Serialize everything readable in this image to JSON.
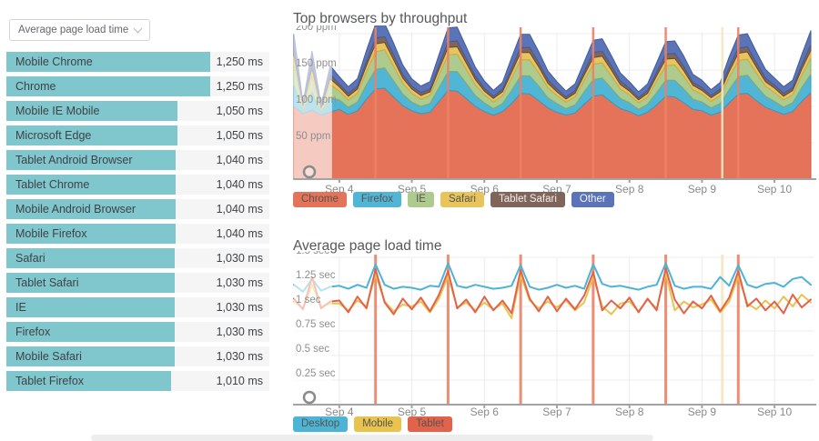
{
  "controls": {
    "metric_dropdown_value": "Average page load time"
  },
  "colors": {
    "bar_teal": "#80c6cd",
    "row_bg": "#f5f5f5",
    "annotation": "#ec8266",
    "annotation_light": "#f5e7c1",
    "axis": "#a3a3a3",
    "grid": "#ececec",
    "tick_text": "#8f8f8f",
    "title_text": "#56585a"
  },
  "chart_data": [
    {
      "type": "area",
      "stacked": true,
      "title": "Top browsers by throughput",
      "unit": "ppm",
      "ylim": [
        0,
        210
      ],
      "x_start": 3.375,
      "x_step": 0.125,
      "x_end": 10.55,
      "x_ticks": {
        "days": [
          4,
          5,
          6,
          7,
          8,
          9,
          10
        ],
        "labels": [
          "Sep 4",
          "Sep 5",
          "Sep 6",
          "Sep 7",
          "Sep 8",
          "Sep 9",
          "Sep 10"
        ]
      },
      "y_ticks": [
        {
          "value": 200,
          "label": "200 ppm"
        },
        {
          "value": 150,
          "label": "150 ppm"
        },
        {
          "value": 100,
          "label": "100 ppm"
        },
        {
          "value": 50,
          "label": "50 ppm"
        }
      ],
      "annotations": [
        {
          "day": 4.5,
          "color": "#ec8266"
        },
        {
          "day": 5.5,
          "color": "#ec8266"
        },
        {
          "day": 6.5,
          "color": "#ec8266"
        },
        {
          "day": 7.5,
          "color": "#ec8266"
        },
        {
          "day": 8.5,
          "color": "#ec8266"
        },
        {
          "day": 9.28,
          "color": "#f5e7c1"
        },
        {
          "day": 9.5,
          "color": "#ec8266"
        }
      ],
      "brush": {
        "end_day": 3.9
      },
      "legend_position": "bottom",
      "grid": true,
      "series": [
        {
          "name": "Chrome",
          "color": "#e4735a",
          "edge": "#d4563e",
          "values": [
            100,
            90,
            95,
            88,
            92,
            96,
            89,
            94,
            110,
            124,
            125,
            113,
            101,
            94,
            90,
            92,
            107,
            122,
            121,
            111,
            100,
            93,
            88,
            93,
            104,
            118,
            117,
            108,
            98,
            92,
            88,
            91,
            103,
            114,
            116,
            106,
            97,
            93,
            87,
            92,
            102,
            114,
            113,
            105,
            96,
            94,
            88,
            92,
            105,
            117,
            118,
            108,
            99,
            94,
            89,
            93,
            107,
            119
          ]
        },
        {
          "name": "Firefox",
          "color": "#51b5d6",
          "edge": "#2e9ec4",
          "values": [
            30,
            5,
            25,
            4,
            20,
            13,
            10,
            12,
            20,
            27,
            28,
            22,
            16,
            12,
            10,
            12,
            19,
            26,
            27,
            21,
            15,
            12,
            9,
            11,
            18,
            24,
            25,
            20,
            14,
            12,
            9,
            11,
            17,
            23,
            23,
            19,
            14,
            12,
            9,
            11,
            17,
            22,
            23,
            19,
            14,
            12,
            10,
            12,
            18,
            24,
            25,
            20,
            15,
            13,
            10,
            12,
            19,
            25
          ]
        },
        {
          "name": "IE",
          "color": "#adca8f",
          "edge": "#88ad67",
          "values": [
            28,
            4,
            22,
            4,
            18,
            12,
            10,
            12,
            18,
            24,
            25,
            20,
            15,
            12,
            10,
            11,
            17,
            23,
            24,
            19,
            15,
            11,
            9,
            11,
            17,
            22,
            22,
            18,
            14,
            11,
            9,
            11,
            16,
            21,
            21,
            17,
            13,
            11,
            9,
            10,
            16,
            20,
            21,
            17,
            13,
            11,
            9,
            11,
            17,
            22,
            22,
            18,
            14,
            12,
            10,
            11,
            17,
            23
          ]
        },
        {
          "name": "Safari",
          "color": "#e7c55c",
          "edge": "#d3a93a",
          "values": [
            12,
            2,
            10,
            2,
            8,
            6,
            5,
            6,
            8,
            11,
            10,
            9,
            7,
            6,
            5,
            5,
            8,
            10,
            10,
            9,
            7,
            5,
            5,
            5,
            8,
            10,
            10,
            8,
            6,
            5,
            4,
            5,
            7,
            9,
            9,
            8,
            6,
            5,
            4,
            5,
            7,
            9,
            9,
            8,
            6,
            5,
            5,
            5,
            8,
            10,
            10,
            8,
            6,
            6,
            5,
            6,
            8,
            10
          ]
        },
        {
          "name": "Tablet Safari",
          "color": "#80655a",
          "edge": "#5f4a3f",
          "text_color": "#f1efed",
          "values": [
            9,
            1,
            8,
            1,
            6,
            4,
            4,
            4,
            6,
            8,
            8,
            7,
            5,
            4,
            4,
            4,
            6,
            8,
            8,
            6,
            5,
            4,
            3,
            4,
            6,
            7,
            7,
            6,
            5,
            4,
            3,
            4,
            5,
            7,
            7,
            6,
            5,
            4,
            3,
            4,
            5,
            7,
            7,
            6,
            4,
            4,
            3,
            4,
            6,
            7,
            7,
            6,
            5,
            4,
            4,
            4,
            6,
            8
          ]
        },
        {
          "name": "Other",
          "color": "#5b74b8",
          "edge": "#425c9e",
          "text_color": "#eef1f7",
          "values": [
            20,
            3,
            16,
            3,
            12,
            10,
            9,
            10,
            15,
            19,
            18,
            16,
            13,
            10,
            9,
            10,
            14,
            19,
            19,
            16,
            12,
            10,
            8,
            9,
            14,
            18,
            18,
            15,
            12,
            10,
            8,
            9,
            13,
            17,
            17,
            14,
            11,
            9,
            8,
            9,
            13,
            17,
            17,
            14,
            11,
            10,
            8,
            9,
            14,
            18,
            18,
            15,
            12,
            10,
            9,
            10,
            14,
            19
          ]
        }
      ]
    },
    {
      "type": "line",
      "title": "Average page load time",
      "unit": "sec",
      "ylim": [
        0,
        1.5
      ],
      "x_start": 3.375,
      "x_step": 0.125,
      "x_end": 10.55,
      "x_ticks": {
        "days": [
          4,
          5,
          6,
          7,
          8,
          9,
          10
        ],
        "labels": [
          "Sep 4",
          "Sep 5",
          "Sep 6",
          "Sep 7",
          "Sep 8",
          "Sep 9",
          "Sep 10"
        ]
      },
      "y_ticks": [
        {
          "value": 1.5,
          "label": "1.5 sec"
        },
        {
          "value": 1.25,
          "label": "1.25 sec"
        },
        {
          "value": 1,
          "label": "1 sec"
        },
        {
          "value": 0.75,
          "label": "0.75 sec"
        },
        {
          "value": 0.5,
          "label": "0.5 sec"
        },
        {
          "value": 0.25,
          "label": "0.25 sec"
        }
      ],
      "annotations": [
        {
          "day": 4.5,
          "color": "#ec8266"
        },
        {
          "day": 5.5,
          "color": "#ec8266"
        },
        {
          "day": 6.5,
          "color": "#ec8266"
        },
        {
          "day": 7.5,
          "color": "#ec8266"
        },
        {
          "day": 8.5,
          "color": "#ec8266"
        },
        {
          "day": 9.28,
          "color": "#f5e7c1"
        },
        {
          "day": 9.5,
          "color": "#ec8266"
        }
      ],
      "brush": {
        "end_day": 3.9
      },
      "legend_position": "bottom",
      "grid": true,
      "series": [
        {
          "name": "Desktop",
          "color": "#4db4d6",
          "values": [
            1.22,
            1.15,
            1.28,
            1.16,
            1.2,
            1.21,
            1.18,
            1.22,
            1.19,
            1.43,
            1.22,
            1.18,
            1.2,
            1.19,
            1.17,
            1.21,
            1.2,
            1.44,
            1.21,
            1.19,
            1.22,
            1.2,
            1.18,
            1.19,
            1.21,
            1.42,
            1.2,
            1.17,
            1.19,
            1.22,
            1.19,
            1.21,
            1.18,
            1.43,
            1.23,
            1.2,
            1.21,
            1.19,
            1.17,
            1.2,
            1.22,
            1.44,
            1.21,
            1.18,
            1.2,
            1.2,
            1.18,
            1.3,
            1.21,
            1.42,
            1.22,
            1.19,
            1.23,
            1.24,
            1.2,
            1.28,
            1.3,
            1.22
          ]
        },
        {
          "name": "Mobile",
          "color": "#e8c44f",
          "values": [
            1.05,
            0.98,
            1.22,
            1.0,
            1.03,
            1.03,
            0.96,
            1.06,
            1.0,
            1.33,
            1.05,
            0.95,
            1.02,
            1.0,
            1.05,
            0.94,
            1.08,
            1.31,
            0.99,
            1.04,
            0.96,
            1.04,
            0.97,
            1.03,
            0.88,
            1.32,
            1.06,
            0.98,
            1.05,
            0.99,
            1.06,
            0.96,
            1.04,
            1.3,
            1.0,
            0.92,
            1.03,
            1.05,
            0.95,
            1.07,
            0.98,
            1.34,
            0.96,
            1.05,
            0.99,
            1.02,
            1.07,
            0.94,
            1.05,
            1.31,
            1.03,
            0.97,
            1.06,
            0.98,
            1.1,
            1.0,
            1.12,
            1.04
          ]
        },
        {
          "name": "Tablet",
          "color": "#e2634b",
          "values": [
            1.08,
            0.97,
            1.3,
            0.98,
            1.05,
            1.06,
            0.94,
            1.1,
            0.98,
            1.38,
            1.04,
            0.92,
            1.08,
            0.97,
            1.09,
            0.95,
            1.12,
            1.36,
            0.98,
            1.07,
            0.94,
            1.1,
            0.96,
            1.06,
            0.93,
            1.37,
            1.08,
            0.95,
            1.1,
            0.95,
            1.08,
            0.97,
            1.11,
            1.35,
            0.96,
            1.06,
            0.98,
            1.09,
            0.94,
            1.08,
            0.96,
            1.39,
            1.07,
            0.93,
            1.05,
            0.98,
            1.11,
            0.95,
            1.09,
            1.36,
            1.0,
            1.08,
            0.96,
            1.05,
            0.93,
            1.12,
            0.99,
            1.07
          ]
        }
      ]
    },
    {
      "type": "bar",
      "orientation": "horizontal",
      "title": "Average page load time",
      "unit": "ms",
      "xlim": [
        0,
        1250
      ],
      "bar_color": "#80c6cd",
      "categories": [
        "Mobile Chrome",
        "Chrome",
        "Mobile IE Mobile",
        "Microsoft Edge",
        "Tablet Android Browser",
        "Tablet Chrome",
        "Mobile Android Browser",
        "Mobile Firefox",
        "Safari",
        "Tablet Safari",
        "IE",
        "Firefox",
        "Mobile Safari",
        "Tablet Firefox"
      ],
      "values": [
        1250,
        1250,
        1050,
        1050,
        1040,
        1040,
        1040,
        1040,
        1030,
        1030,
        1030,
        1030,
        1030,
        1010
      ],
      "value_labels": [
        "1,250 ms",
        "1,250 ms",
        "1,050 ms",
        "1,050 ms",
        "1,040 ms",
        "1,040 ms",
        "1,040 ms",
        "1,040 ms",
        "1,030 ms",
        "1,030 ms",
        "1,030 ms",
        "1,030 ms",
        "1,030 ms",
        "1,010 ms"
      ]
    }
  ]
}
